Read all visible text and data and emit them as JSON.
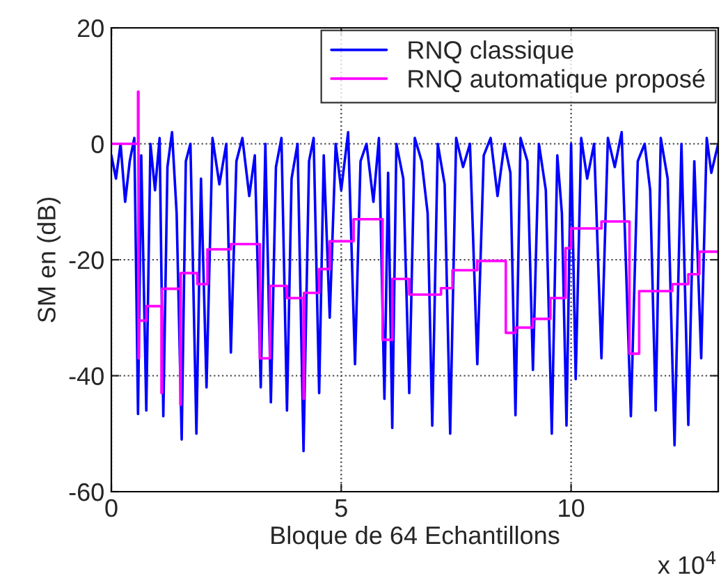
{
  "chart_data": {
    "type": "line",
    "xlabel": "Bloque de 64 Echantillons",
    "ylabel": "SM en (dB)",
    "annotations": [
      "x 10$^{4}$"
    ],
    "xlim": [
      0,
      13.2
    ],
    "ylim": [
      -60,
      20
    ],
    "xticks": [
      0,
      5,
      10
    ],
    "yticks": [
      -60,
      -40,
      -20,
      0,
      20
    ],
    "grid": true,
    "legend": "top right",
    "series": [
      {
        "name": "RNQ classique",
        "color": "#0000ff",
        "x": [
          0,
          0.1,
          0.2,
          0.3,
          0.4,
          0.5,
          0.58,
          0.65,
          0.76,
          0.85,
          0.95,
          1.05,
          1.13,
          1.22,
          1.32,
          1.42,
          1.53,
          1.62,
          1.72,
          1.85,
          1.95,
          2.07,
          2.2,
          2.35,
          2.5,
          2.6,
          2.72,
          2.85,
          3.0,
          3.12,
          3.25,
          3.35,
          3.47,
          3.58,
          3.7,
          3.82,
          3.92,
          4.05,
          4.18,
          4.3,
          4.4,
          4.52,
          4.62,
          4.75,
          4.88,
          5.0,
          5.15,
          5.3,
          5.42,
          5.55,
          5.7,
          5.82,
          5.94,
          6.02,
          6.11,
          6.2,
          6.35,
          6.48,
          6.6,
          6.75,
          6.88,
          6.98,
          7.1,
          7.25,
          7.37,
          7.5,
          7.65,
          7.8,
          7.96,
          8.1,
          8.25,
          8.4,
          8.55,
          8.68,
          8.79,
          8.9,
          9.05,
          9.17,
          9.3,
          9.45,
          9.58,
          9.7,
          9.8,
          9.9,
          10.0,
          10.1,
          10.22,
          10.35,
          10.5,
          10.66,
          10.8,
          10.95,
          11.1,
          11.3,
          11.45,
          11.6,
          11.72,
          11.84,
          11.95,
          12.1,
          12.25,
          12.4,
          12.55,
          12.68,
          12.83,
          12.95,
          13.05,
          13.2
        ],
        "values": [
          -2,
          -6,
          0,
          -10,
          -3,
          1,
          -46.6,
          -2,
          -46,
          0,
          -8,
          1,
          -47,
          -4,
          2,
          -12,
          -51,
          -3,
          0,
          -50,
          -6,
          -42,
          1,
          -7,
          0,
          -36,
          -3,
          1,
          -9,
          -2,
          -42,
          0,
          -44.6,
          -4,
          1,
          -46,
          -6,
          0,
          -53,
          -3,
          1,
          -43,
          -2,
          -30,
          0,
          -8,
          2,
          -38,
          -3,
          0,
          -10,
          1,
          -44,
          -5,
          -49,
          0,
          -6,
          -43,
          1,
          -3,
          -12,
          -48.6,
          0,
          -7,
          -50,
          1,
          -4,
          0,
          -38,
          -2,
          1,
          -9,
          0,
          -5,
          -46.8,
          1,
          -3,
          -39,
          0,
          -8,
          -50,
          -2,
          -12,
          -48.6,
          0,
          -40.6,
          1,
          -6,
          0,
          -37,
          1,
          -4,
          2,
          -47,
          -3,
          0,
          -8,
          -46,
          1,
          -6,
          -52,
          0,
          -48.5,
          -3,
          -37,
          1,
          -5,
          0
        ]
      },
      {
        "name": "RNQ automatique proposé",
        "color": "#ff00ff",
        "type": "step",
        "x": [
          0,
          0.58,
          0.59,
          0.6,
          0.76,
          1.09,
          1.1,
          1.5,
          1.51,
          1.87,
          2.09,
          2.6,
          3.23,
          3.45,
          3.82,
          4.18,
          4.19,
          4.52,
          4.75,
          5.27,
          5.9,
          6.11,
          6.48,
          7.17,
          7.42,
          7.96,
          8.58,
          8.79,
          9.17,
          9.55,
          9.88,
          10.0,
          10.66,
          11.27,
          11.48,
          12.2,
          12.55,
          12.79,
          13.2
        ],
        "values": [
          0,
          9,
          -37,
          -30.5,
          -28,
          -43,
          -25,
          -45,
          -22.3,
          -24.2,
          -18.2,
          -17.3,
          -37,
          -24.5,
          -26.6,
          -44,
          -25.7,
          -21.6,
          -16.8,
          -13,
          -33.8,
          -23.3,
          -26,
          -24.9,
          -21.8,
          -20.2,
          -32.6,
          -31.7,
          -30.2,
          -26.6,
          -18,
          -14.6,
          -13.4,
          -36.2,
          -25.4,
          -24.2,
          -22.5,
          -18.6,
          -18.6
        ]
      }
    ]
  }
}
